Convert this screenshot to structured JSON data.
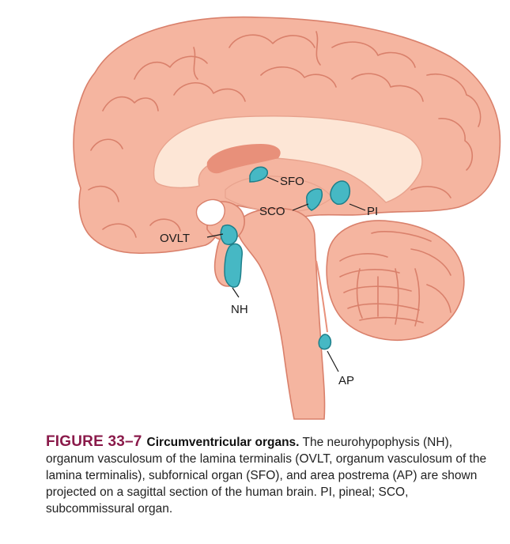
{
  "labels": {
    "sfo": "SFO",
    "sco": "SCO",
    "pi": "PI",
    "ovlt": "OVLT",
    "nh": "NH",
    "ap": "AP"
  },
  "caption": {
    "figure_number": "FIGURE 33–7",
    "title": "Circumventricular organs.",
    "body": "The neurohypophysis (NH), organum vasculosum of the lamina terminalis (OVLT, organum vasculosum of the lamina terminalis), subfornical organ (SFO), and area postrema (AP) are shown projected on a sagittal section of the human brain. PI, pineal; SCO, subcommissural organ."
  },
  "colors": {
    "brain_fill": "#f5b5a0",
    "brain_outline": "#d9806b",
    "corpus_callosum": "#fde6d6",
    "ventricle": "#e8907a",
    "organs": "#46b8c4",
    "figure_label": "#8a1a4a"
  }
}
